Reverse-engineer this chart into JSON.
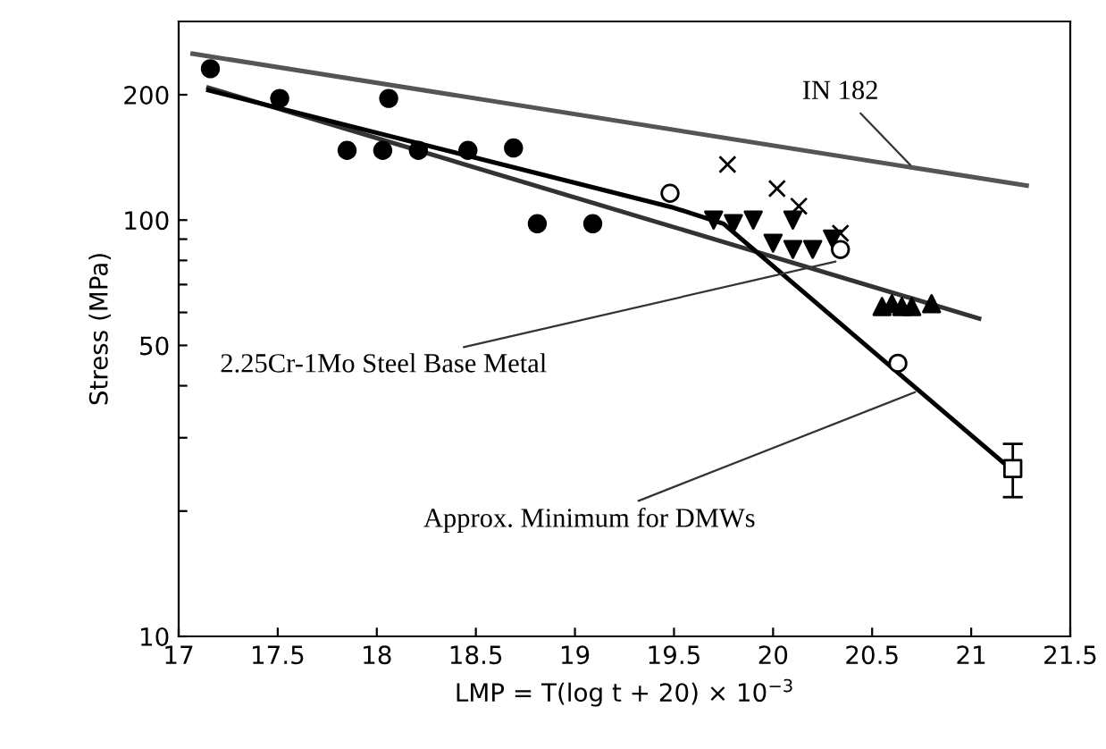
{
  "chart_data": {
    "type": "scatter",
    "xlabel": "LMP = T(log t + 20) × 10$^{−3}$",
    "ylabel": "Stress (MPa)",
    "log": "y",
    "grid": false,
    "legend": false,
    "xlim": [
      17,
      21.5
    ],
    "xticks": [
      17,
      17.5,
      18,
      18.5,
      19,
      19.5,
      20,
      20.5,
      21,
      21.5
    ],
    "ylim": [
      10,
      300
    ],
    "yticks": [
      10,
      {
        "value": 20,
        "label": null
      },
      {
        "value": 30,
        "label": null
      },
      {
        "value": 40,
        "label": null
      },
      50,
      {
        "value": 60,
        "label": null
      },
      {
        "value": 70,
        "label": null
      },
      {
        "value": 80,
        "label": null
      },
      {
        "value": 90,
        "label": null
      },
      100,
      200
    ],
    "series": [
      {
        "type": "line",
        "color": "#555555",
        "marker": "none",
        "x": [
          17.07,
          21.28
        ],
        "values": [
          251,
          121
        ]
      },
      {
        "type": "line",
        "color": "#333333",
        "marker": "none",
        "x": [
          17.15,
          21.04
        ],
        "values": [
          208,
          58
        ]
      },
      {
        "type": "line",
        "color": "#000000",
        "marker": "none",
        "x": [
          17.15,
          19.5,
          19.75,
          21.21
        ],
        "values": [
          205,
          107,
          98,
          25
        ]
      },
      {
        "color": "#000000",
        "marker": "circle",
        "x": [
          17.16,
          17.51,
          18.06,
          17.85,
          18.03,
          18.21,
          18.46,
          18.69,
          18.81,
          19.09
        ],
        "values": [
          231,
          196,
          196,
          147,
          147,
          147,
          147,
          149,
          98,
          98
        ]
      },
      {
        "color": "#000000",
        "marker": "triangle_down",
        "x": [
          19.7,
          19.8,
          19.9,
          20.0,
          20.1,
          20.2,
          20.3,
          20.1
        ],
        "values": [
          100,
          98,
          100,
          88,
          85,
          85,
          90,
          100
        ]
      },
      {
        "color": "#000000",
        "marker": "triangle",
        "x": [
          20.55,
          20.6,
          20.65,
          20.7,
          20.8
        ],
        "values": [
          62,
          63,
          62,
          62,
          63
        ]
      },
      {
        "color": "#ffffff",
        "marker": "circle",
        "x": [
          19.48,
          20.34,
          20.63
        ],
        "values": [
          116,
          85,
          45.3
        ]
      },
      {
        "color": "#000000",
        "marker": "cross",
        "x": [
          19.77,
          20.02,
          20.13,
          20.34
        ],
        "values": [
          136,
          119,
          108,
          93
        ]
      },
      {
        "color": "#ffffff",
        "marker": "square",
        "x": [
          21.21
        ],
        "values": [
          25.3
        ],
        "errors": [
          [
            21.6,
            29.0
          ]
        ]
      }
    ],
    "annotations": [
      {
        "text": "IN 182",
        "x": 20.71,
        "y": 133
      },
      {
        "text": "2.25Cr-1Mo Steel Base Metal",
        "x": 20.34,
        "y": 80
      },
      {
        "text": "Approx. Minimum for DMWs",
        "x": 20.74,
        "y": 39
      }
    ]
  }
}
